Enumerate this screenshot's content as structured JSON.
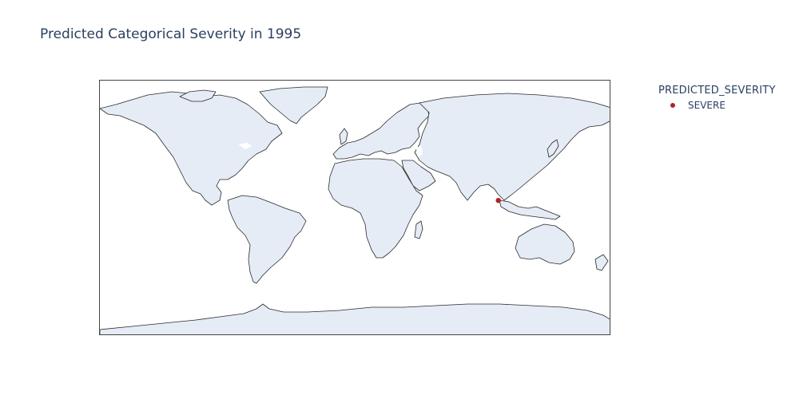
{
  "title": "Predicted Categorical Severity in 1995",
  "legend": {
    "title": "PREDICTED_SEVERITY",
    "items": [
      {
        "label": "SEVERE",
        "color": "#b22222"
      }
    ]
  },
  "map": {
    "projection": "equirectangular",
    "land_color": "#e5ecf6",
    "coastline_color": "#2a2a2a",
    "lon_range": [
      -180,
      180
    ],
    "lat_range": [
      -90,
      90
    ]
  },
  "chart_data": {
    "type": "scatter",
    "title": "Predicted Categorical Severity in 1995",
    "series": [
      {
        "name": "SEVERE",
        "color": "#b22222",
        "points": [
          {
            "lon": 100.5,
            "lat": 5.5
          }
        ]
      }
    ]
  }
}
